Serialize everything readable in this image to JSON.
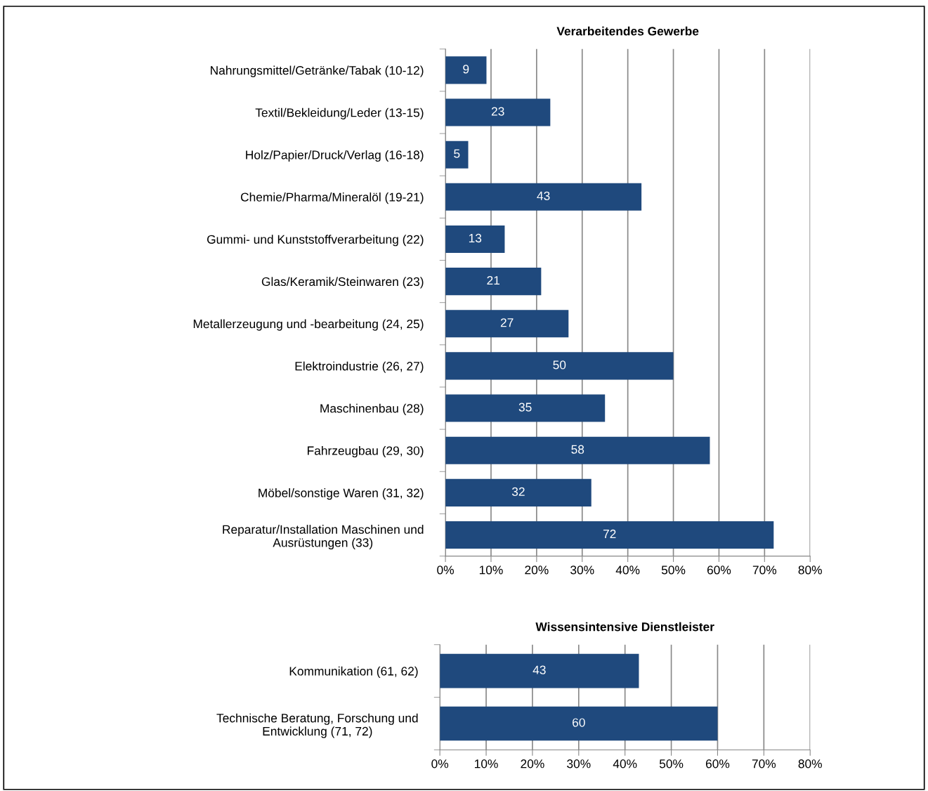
{
  "chart_data": [
    {
      "type": "bar",
      "orientation": "horizontal",
      "title": "Verarbeitendes Gewerbe",
      "categories": [
        "Nahrungsmittel/Getränke/Tabak (10-12)",
        "Textil/Bekleidung/Leder (13-15)",
        "Holz/Papier/Druck/Verlag (16-18)",
        "Chemie/Pharma/Mineralöl (19-21)",
        "Gummi- und Kunststoffverarbeitung (22)",
        "Glas/Keramik/Steinwaren (23)",
        "Metallerzeugung und -bearbeitung (24, 25)",
        "Elektroindustrie (26, 27)",
        "Maschinenbau (28)",
        "Fahrzeugbau (29, 30)",
        "Möbel/sonstige Waren (31, 32)",
        "Reparatur/Installation Maschinen und\nAusrüstungen (33)"
      ],
      "values": [
        9,
        23,
        5,
        43,
        13,
        21,
        27,
        50,
        35,
        58,
        32,
        72
      ],
      "color": "#1f497d",
      "data_labels": true,
      "grid": "x",
      "legend": false,
      "xlim": [
        0,
        80
      ],
      "xticks": [
        {
          "value": 0,
          "label": "0%"
        },
        {
          "value": 10,
          "label": "10%"
        },
        {
          "value": 20,
          "label": "20%"
        },
        {
          "value": 30,
          "label": "30%"
        },
        {
          "value": 40,
          "label": "40%"
        },
        {
          "value": 50,
          "label": "50%"
        },
        {
          "value": 60,
          "label": "60%"
        },
        {
          "value": 70,
          "label": "70%"
        },
        {
          "value": 80,
          "label": "80%"
        }
      ]
    },
    {
      "type": "bar",
      "orientation": "horizontal",
      "title": "Wissensintensive Dienstleister",
      "categories": [
        "Kommunikation (61, 62)",
        "Technische Beratung, Forschung und\nEntwicklung (71, 72)"
      ],
      "values": [
        43,
        60
      ],
      "color": "#1f497d",
      "data_labels": true,
      "grid": "x",
      "legend": false,
      "xlim": [
        0,
        80
      ],
      "xticks": [
        {
          "value": 0,
          "label": "0%"
        },
        {
          "value": 10,
          "label": "10%"
        },
        {
          "value": 20,
          "label": "20%"
        },
        {
          "value": 30,
          "label": "30%"
        },
        {
          "value": 40,
          "label": "40%"
        },
        {
          "value": 50,
          "label": "50%"
        },
        {
          "value": 60,
          "label": "60%"
        },
        {
          "value": 70,
          "label": "70%"
        },
        {
          "value": 80,
          "label": "80%"
        }
      ]
    }
  ]
}
